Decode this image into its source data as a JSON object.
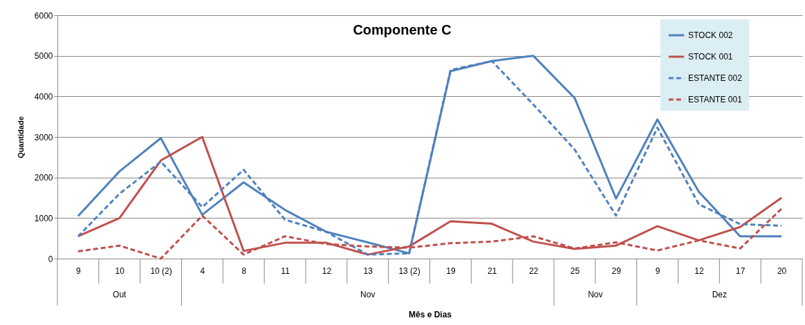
{
  "chart_data": {
    "type": "line",
    "title": "Componente C",
    "xlabel": "Mês e Dias",
    "ylabel": "Quantidade",
    "categories": [
      "9",
      "10",
      "10 (2)",
      "4",
      "8",
      "11",
      "12",
      "13",
      "13 (2)",
      "19",
      "21",
      "22",
      "25",
      "29",
      "9",
      "12",
      "17",
      "20"
    ],
    "annotations": [
      "Out",
      "Nov",
      "Nov",
      "Dez"
    ],
    "series": [
      {
        "name": "STOCK 002",
        "color": "#4f81bd",
        "line_style": "solid",
        "values": [
          1050,
          2150,
          2970,
          1080,
          1880,
          1200,
          660,
          400,
          130,
          4620,
          4870,
          5000,
          3960,
          1480,
          3430,
          1650,
          550,
          550
        ]
      },
      {
        "name": "STOCK 001",
        "color": "#c0504d",
        "line_style": "solid",
        "values": [
          550,
          1000,
          2420,
          3000,
          190,
          390,
          390,
          100,
          300,
          920,
          860,
          420,
          240,
          320,
          800,
          450,
          780,
          1500
        ]
      },
      {
        "name": "ESTANTE 002",
        "color": "#4f81bd",
        "line_style": "dashed",
        "values": [
          550,
          1600,
          2390,
          1270,
          2190,
          960,
          660,
          100,
          130,
          4650,
          4870,
          3800,
          2690,
          1060,
          3230,
          1340,
          850,
          810
        ]
      },
      {
        "name": "ESTANTE 001",
        "color": "#c0504d",
        "line_style": "dashed",
        "values": [
          180,
          320,
          0,
          1060,
          100,
          550,
          360,
          300,
          270,
          380,
          420,
          550,
          250,
          400,
          200,
          450,
          250,
          1230
        ]
      }
    ],
    "ylim": [
      0,
      6000
    ],
    "yticks": [
      0,
      1000,
      2000,
      3000,
      4000,
      5000,
      6000
    ],
    "grid": "y",
    "legend": "top right",
    "marker": "none"
  }
}
